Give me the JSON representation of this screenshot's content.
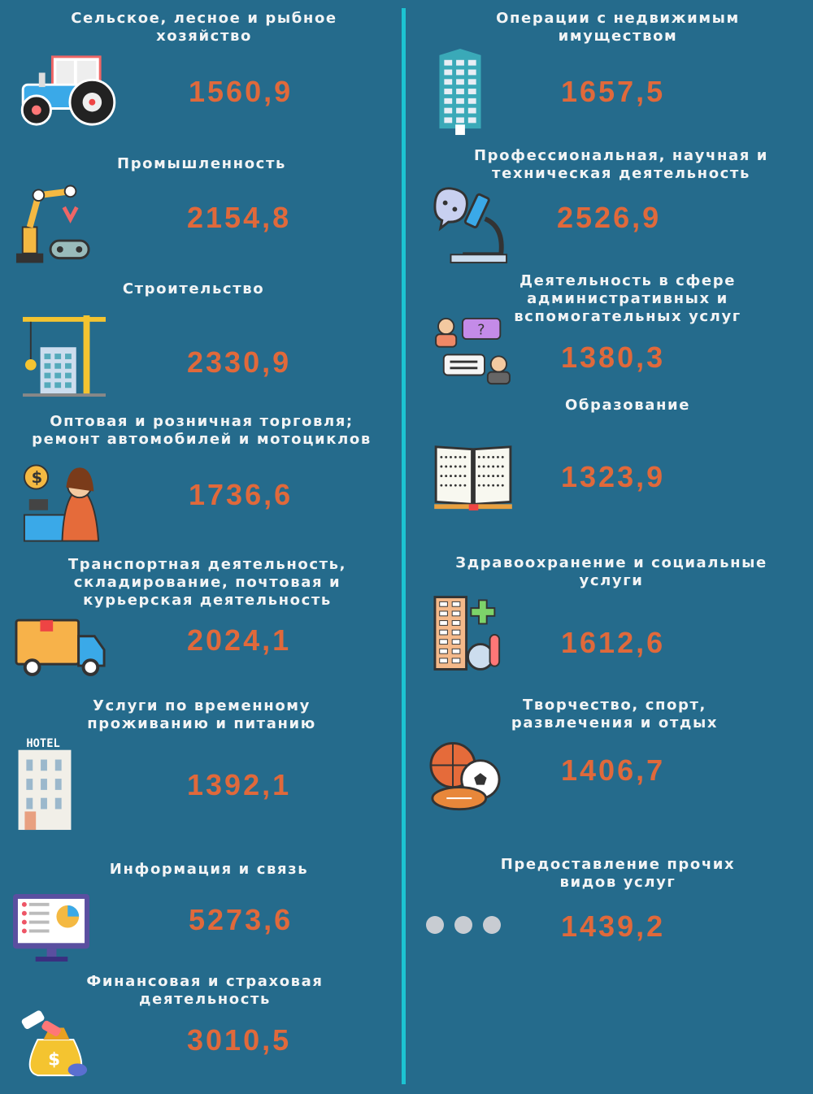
{
  "colors": {
    "background": "#256b8c",
    "value": "#e0693b",
    "divider": "#1cc3d2",
    "title": "#f2f4f5"
  },
  "left": [
    {
      "title": "Сельское, лесное и рыбное\nхозяйство",
      "value": "1560,9",
      "icon": "tractor-icon"
    },
    {
      "title": "Промышленность",
      "value": "2154,8",
      "icon": "robot-arm-icon"
    },
    {
      "title": "Строительство",
      "value": "2330,9",
      "icon": "crane-icon"
    },
    {
      "title": "Оптовая и розничная торговля;\nремонт автомобилей и мотоциклов",
      "value": "1736,6",
      "icon": "cashier-icon"
    },
    {
      "title": "Транспортная деятельность,\nскладирование, почтовая и\nкурьерская деятельность",
      "value": "2024,1",
      "icon": "delivery-truck-icon"
    },
    {
      "title": "Услуги по временному\nпроживанию и питанию",
      "value": "1392,1",
      "icon": "hotel-icon"
    },
    {
      "title": "Информация и связь",
      "value": "5273,6",
      "icon": "monitor-chart-icon"
    },
    {
      "title": "Финансовая и страховая\nдеятельность",
      "value": "3010,5",
      "icon": "money-bag-icon"
    }
  ],
  "right": [
    {
      "title": "Операции с недвижимым\nимуществом",
      "value": "1657,5",
      "icon": "building-icon"
    },
    {
      "title": "Профессиональная, научная и\nтехническая деятельность",
      "value": "2526,9",
      "icon": "microscope-icon"
    },
    {
      "title": "Деятельность в сфере\nадминистративных и\nвспомогательных услуг",
      "value": "1380,3",
      "icon": "consultation-icon"
    },
    {
      "title": "Образование",
      "value": "1323,9",
      "icon": "open-book-icon"
    },
    {
      "title": "Здравоохранение и социальные\nуслуги",
      "value": "1612,6",
      "icon": "hospital-icon"
    },
    {
      "title": "Творчество, спорт,\nразвлечения и отдых",
      "value": "1406,7",
      "icon": "sports-balls-icon"
    },
    {
      "title": "Предоставление прочих\nвидов услуг",
      "value": "1439,2",
      "icon": "more-dots-icon"
    }
  ],
  "hotel_sign": "HOTEL"
}
